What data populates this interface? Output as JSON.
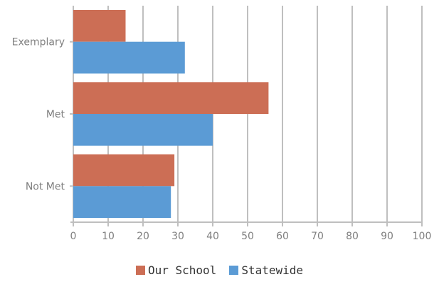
{
  "chart_data": {
    "type": "bar",
    "orientation": "horizontal",
    "categories": [
      "Exemplary",
      "Met",
      "Not Met"
    ],
    "series": [
      {
        "name": "Our School",
        "values": [
          15,
          56,
          29
        ],
        "color": "#cc6e55"
      },
      {
        "name": "Statewide",
        "values": [
          32,
          40,
          28
        ],
        "color": "#5b9bd5"
      }
    ],
    "xlim": [
      0,
      100
    ],
    "xticks": [
      "0",
      "10",
      "20",
      "30",
      "40",
      "50",
      "60",
      "70",
      "80",
      "90",
      "100"
    ],
    "title": "",
    "xlabel": "",
    "ylabel": "",
    "grid": "vertical",
    "legend_position": "bottom",
    "colors": {
      "grid": "#bfbfbf",
      "tick_text": "#7f7f7f",
      "legend_text": "#333333"
    }
  }
}
